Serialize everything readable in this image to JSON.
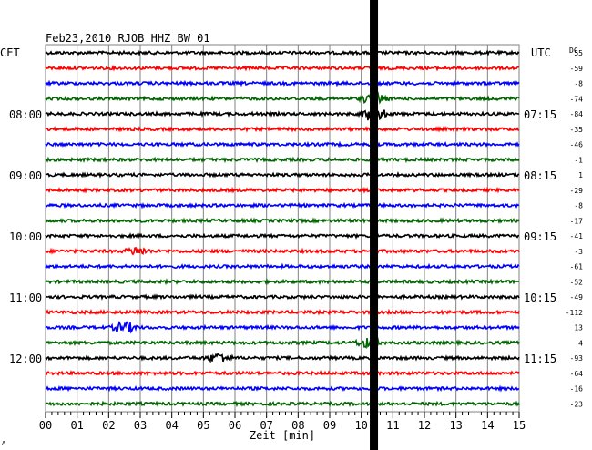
{
  "header": {
    "title": "Feb23,2010  RJOB HHZ BW 01",
    "left_label": "CET",
    "right_label": "UTC",
    "dc_label": "DC",
    "corner_mark": "ʌ"
  },
  "colors": {
    "trace_cycle": [
      "#000000",
      "#ff0000",
      "#0000ff",
      "#006400"
    ],
    "grid": "#808080",
    "event_bar": "#000000"
  },
  "chart_data": {
    "type": "line",
    "title": "Feb23,2010  RJOB HHZ BW 01",
    "xlabel": "Zeit [min]",
    "ylabel": "",
    "xlim": [
      0,
      15
    ],
    "x_ticks": [
      "00",
      "01",
      "02",
      "03",
      "04",
      "05",
      "06",
      "07",
      "08",
      "09",
      "10",
      "11",
      "12",
      "13",
      "14",
      "15"
    ],
    "grid": true,
    "num_traces": 24,
    "time_labels_left": [
      {
        "trace": 4,
        "label": "08:00"
      },
      {
        "trace": 8,
        "label": "09:00"
      },
      {
        "trace": 12,
        "label": "10:00"
      },
      {
        "trace": 16,
        "label": "11:00"
      },
      {
        "trace": 20,
        "label": "12:00"
      }
    ],
    "time_labels_right": [
      {
        "trace": 4,
        "label": "07:15"
      },
      {
        "trace": 8,
        "label": "08:15"
      },
      {
        "trace": 12,
        "label": "09:15"
      },
      {
        "trace": 16,
        "label": "10:15"
      },
      {
        "trace": 20,
        "label": "11:15"
      }
    ],
    "dc_offsets": [
      "55",
      "-59",
      "-8",
      "-74",
      "-84",
      "-35",
      "-46",
      "-1",
      "1",
      "-29",
      "-8",
      "-17",
      "-41",
      "-3",
      "-61",
      "-52",
      "-49",
      "-112",
      "13",
      "4",
      "-93",
      "-64",
      "-16",
      "-23"
    ],
    "event_minute": 10.4,
    "bursts": [
      {
        "trace": 13,
        "minute": 2.9,
        "amplitude": 4
      },
      {
        "trace": 18,
        "minute": 2.5,
        "amplitude": 6
      },
      {
        "trace": 19,
        "minute": 10.2,
        "amplitude": 5
      },
      {
        "trace": 20,
        "minute": 5.5,
        "amplitude": 5
      },
      {
        "trace": 4,
        "minute": 10.4,
        "amplitude": 9
      },
      {
        "trace": 3,
        "minute": 10.4,
        "amplitude": 7
      }
    ]
  }
}
